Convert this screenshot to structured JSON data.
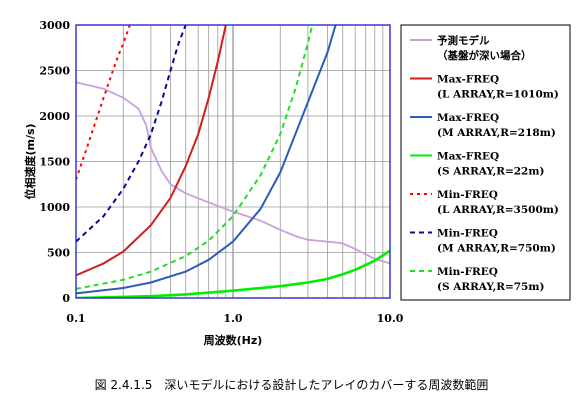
{
  "caption": "図 2.4.1.5　深いモデルにおける設計したアレイのカバーする周波数範囲",
  "chart_data": {
    "type": "line",
    "xlabel": "周波数(Hz)",
    "ylabel": "位相速度(m/s)",
    "x_scale": "log",
    "xlim": [
      0.1,
      10.0
    ],
    "ylim": [
      0,
      3000
    ],
    "x_ticks": [
      "0.1",
      "1.0",
      "10.0"
    ],
    "y_ticks": [
      "0",
      "500",
      "1000",
      "1500",
      "2000",
      "2500",
      "3000"
    ],
    "grid": true,
    "legend_position": "right",
    "series": [
      {
        "name": "予測モデル",
        "name2": "（基盤が深い場合）",
        "color": "#c9a0dc",
        "style": "solid",
        "points": [
          [
            0.1,
            2370
          ],
          [
            0.15,
            2300
          ],
          [
            0.2,
            2200
          ],
          [
            0.25,
            2080
          ],
          [
            0.28,
            1900
          ],
          [
            0.3,
            1650
          ],
          [
            0.35,
            1400
          ],
          [
            0.4,
            1250
          ],
          [
            0.5,
            1150
          ],
          [
            0.7,
            1050
          ],
          [
            1.0,
            950
          ],
          [
            1.5,
            850
          ],
          [
            2.0,
            750
          ],
          [
            2.5,
            680
          ],
          [
            3.0,
            640
          ],
          [
            4.0,
            620
          ],
          [
            5.0,
            600
          ],
          [
            6.0,
            540
          ],
          [
            8.0,
            430
          ],
          [
            10.0,
            380
          ]
        ]
      },
      {
        "name": "Max-FREQ",
        "name2": "(L ARRAY,R=1010m)",
        "color": "#d21e1e",
        "style": "solid",
        "points": [
          [
            0.1,
            250
          ],
          [
            0.15,
            380
          ],
          [
            0.2,
            510
          ],
          [
            0.3,
            800
          ],
          [
            0.4,
            1100
          ],
          [
            0.5,
            1450
          ],
          [
            0.6,
            1800
          ],
          [
            0.7,
            2200
          ],
          [
            0.8,
            2600
          ],
          [
            0.9,
            3000
          ]
        ]
      },
      {
        "name": "Max-FREQ",
        "name2": "(M ARRAY,R=218m)",
        "color": "#2a5cb8",
        "style": "solid",
        "points": [
          [
            0.1,
            50
          ],
          [
            0.2,
            110
          ],
          [
            0.3,
            170
          ],
          [
            0.5,
            290
          ],
          [
            0.7,
            420
          ],
          [
            1.0,
            620
          ],
          [
            1.5,
            980
          ],
          [
            2.0,
            1380
          ],
          [
            3.0,
            2150
          ],
          [
            4.0,
            2700
          ],
          [
            4.5,
            3000
          ]
        ]
      },
      {
        "name": "Max-FREQ",
        "name2": "(S ARRAY,R=22m)",
        "color": "#00ee00",
        "style": "solid",
        "points": [
          [
            0.1,
            0
          ],
          [
            0.3,
            20
          ],
          [
            0.5,
            40
          ],
          [
            1.0,
            80
          ],
          [
            2.0,
            130
          ],
          [
            3.0,
            170
          ],
          [
            4.0,
            210
          ],
          [
            5.0,
            260
          ],
          [
            6.0,
            310
          ],
          [
            8.0,
            410
          ],
          [
            10.0,
            520
          ]
        ]
      },
      {
        "name": "Min-FREQ",
        "name2": "(L ARRAY,R=3500m)",
        "color": "#ff0000",
        "style": "dotted",
        "points": [
          [
            0.1,
            1300
          ],
          [
            0.12,
            1700
          ],
          [
            0.15,
            2200
          ],
          [
            0.18,
            2600
          ],
          [
            0.2,
            2800
          ],
          [
            0.22,
            3000
          ]
        ]
      },
      {
        "name": "Min-FREQ",
        "name2": "(M ARRAY,R=750m)",
        "color": "#0a0a96",
        "style": "dashed",
        "points": [
          [
            0.1,
            620
          ],
          [
            0.15,
            900
          ],
          [
            0.2,
            1200
          ],
          [
            0.25,
            1500
          ],
          [
            0.3,
            1800
          ],
          [
            0.35,
            2150
          ],
          [
            0.4,
            2500
          ],
          [
            0.45,
            2800
          ],
          [
            0.5,
            3000
          ]
        ]
      },
      {
        "name": "Min-FREQ",
        "name2": "(S ARRAY,R=75m)",
        "color": "#22dd22",
        "style": "dashed",
        "points": [
          [
            0.1,
            100
          ],
          [
            0.2,
            200
          ],
          [
            0.3,
            290
          ],
          [
            0.5,
            460
          ],
          [
            0.7,
            630
          ],
          [
            1.0,
            900
          ],
          [
            1.5,
            1350
          ],
          [
            2.0,
            1800
          ],
          [
            2.5,
            2300
          ],
          [
            3.0,
            2800
          ],
          [
            3.2,
            3000
          ]
        ]
      }
    ]
  }
}
